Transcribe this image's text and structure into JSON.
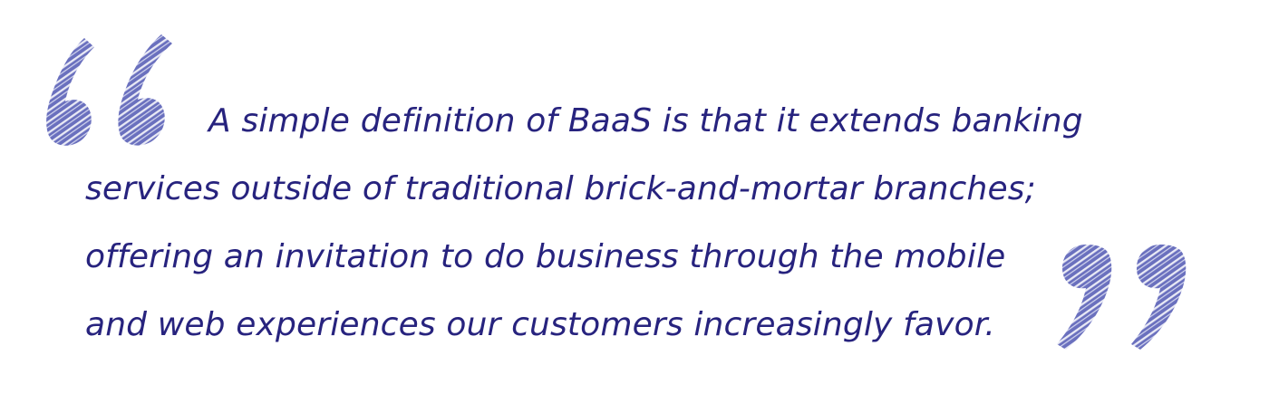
{
  "quote": {
    "lines": [
      "A simple definition of BaaS is that it extends banking",
      "services outside of traditional brick-and-mortar branches;",
      "offering an invitation to do business through the mobile",
      "and web experiences our customers increasingly favor."
    ]
  },
  "icons": {
    "open": "open-quote-icon",
    "close": "close-quote-icon"
  },
  "colors": {
    "text": "#27237e",
    "quote_mark": "#6167b8",
    "quote_mark_light": "#ffffff",
    "background": "#ffffff"
  }
}
